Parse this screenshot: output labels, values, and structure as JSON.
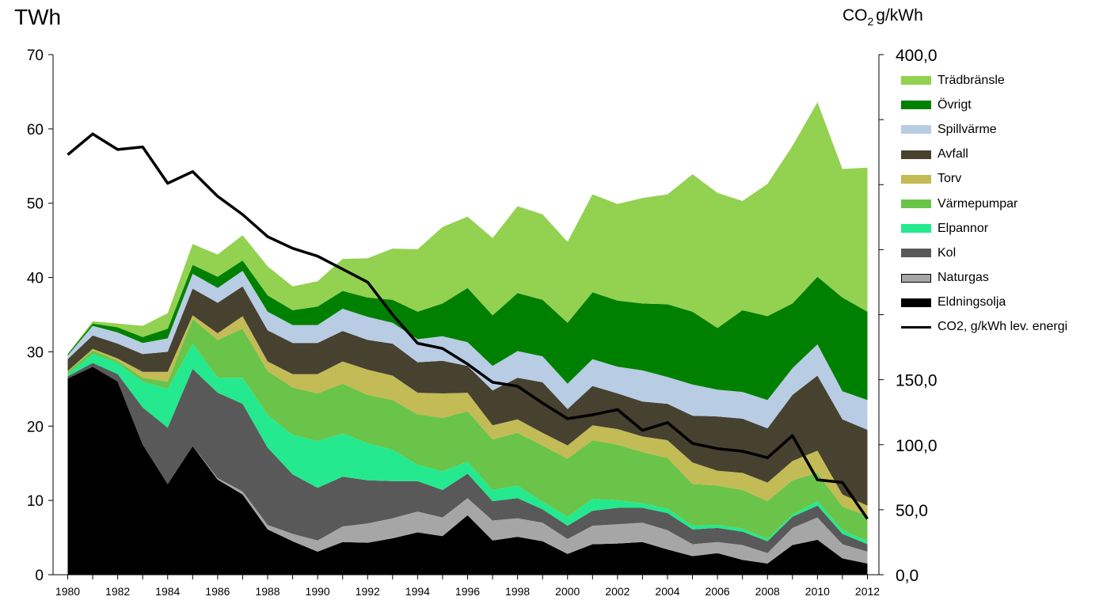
{
  "chart_data": {
    "type": "area",
    "stacked": true,
    "left_unit": "TWh",
    "right_unit_main": "CO",
    "right_unit_sub": "2",
    "right_unit_rest": "g/kWh",
    "x": [
      1980,
      1981,
      1982,
      1983,
      1984,
      1985,
      1986,
      1987,
      1988,
      1989,
      1990,
      1991,
      1992,
      1993,
      1994,
      1995,
      1996,
      1997,
      1998,
      1999,
      2000,
      2001,
      2002,
      2003,
      2004,
      2005,
      2006,
      2007,
      2008,
      2009,
      2010,
      2011,
      2012
    ],
    "x_ticks": [
      "1980",
      "1982",
      "1984",
      "1986",
      "1988",
      "1990",
      "1992",
      "1994",
      "1996",
      "1998",
      "2000",
      "2002",
      "2004",
      "2006",
      "2008",
      "2010",
      "2012"
    ],
    "y_left_ticks": [
      "0",
      "10",
      "20",
      "30",
      "40",
      "50",
      "60",
      "70"
    ],
    "y_left_lim": [
      0,
      70
    ],
    "y_right_ticks": [
      "0,0",
      "50,0",
      "100,0",
      "150,0",
      "200,0",
      "250,0",
      "300,0",
      "350,0",
      "400,0"
    ],
    "y_right_labeled": [
      "0,0",
      "50,0",
      "100,0",
      "150,0",
      "",
      "",
      "",
      "",
      "400,0"
    ],
    "y_right_lim": [
      0,
      400
    ],
    "series": [
      {
        "name": "Eldningsolja",
        "color": "#000000",
        "values": [
          26.4,
          28.0,
          26.0,
          17.5,
          12.2,
          17.3,
          12.8,
          10.8,
          6.1,
          4.5,
          3.1,
          4.4,
          4.3,
          4.9,
          5.7,
          5.2,
          8.0,
          4.6,
          5.1,
          4.5,
          2.8,
          4.1,
          4.2,
          4.4,
          3.4,
          2.5,
          2.9,
          2.0,
          1.5,
          4.0,
          4.7,
          2.2,
          1.5
        ]
      },
      {
        "name": "Naturgas",
        "color": "#a6a6a6",
        "values": [
          0,
          0,
          0,
          0,
          0,
          0,
          0.2,
          0.4,
          0.6,
          1.0,
          1.5,
          2.1,
          2.6,
          2.7,
          2.8,
          2.5,
          2.3,
          2.7,
          2.5,
          2.5,
          2.0,
          2.5,
          2.6,
          2.6,
          2.6,
          1.6,
          1.5,
          2.0,
          1.4,
          2.3,
          3.0,
          1.9,
          1.6
        ]
      },
      {
        "name": "Kol",
        "color": "#595959",
        "values": [
          0.3,
          0.5,
          1.0,
          5.0,
          7.6,
          10.4,
          11.5,
          11.8,
          10.4,
          8.0,
          7.1,
          6.7,
          5.8,
          5.0,
          4.1,
          3.7,
          3.3,
          2.6,
          2.7,
          1.8,
          1.8,
          2.0,
          2.2,
          2.0,
          2.3,
          2.0,
          1.9,
          1.8,
          1.6,
          1.5,
          1.6,
          1.4,
          1.0
        ]
      },
      {
        "name": "Elpannor",
        "color": "#24e98e",
        "values": [
          0.3,
          1.2,
          1.5,
          3.5,
          5.2,
          3.4,
          2.0,
          3.5,
          4.4,
          5.3,
          6.3,
          5.8,
          5.0,
          4.2,
          2.2,
          2.5,
          1.6,
          1.5,
          1.7,
          1.0,
          1.2,
          1.6,
          1.0,
          0.6,
          0.6,
          0.5,
          0.4,
          0.4,
          0.3,
          0.3,
          0.6,
          0.5,
          0.4
        ]
      },
      {
        "name": "Värmepumpar",
        "color": "#69c449",
        "values": [
          0.3,
          0.5,
          0.3,
          0.5,
          1.0,
          3.3,
          5.1,
          6.6,
          5.9,
          6.4,
          6.4,
          6.7,
          6.5,
          6.7,
          6.8,
          7.2,
          6.8,
          6.8,
          7.1,
          7.6,
          7.8,
          7.9,
          7.5,
          6.9,
          6.8,
          5.6,
          5.3,
          5.2,
          5.1,
          4.6,
          3.8,
          3.2,
          3.4
        ]
      },
      {
        "name": "Torv",
        "color": "#c3bb55",
        "values": [
          0.1,
          0.2,
          0.3,
          0.8,
          1.3,
          0.5,
          0.9,
          1.7,
          1.3,
          1.8,
          2.6,
          3.0,
          3.4,
          3.3,
          2.9,
          3.3,
          2.5,
          1.9,
          1.8,
          1.7,
          1.8,
          2.0,
          2.1,
          2.1,
          2.4,
          2.9,
          2.0,
          2.3,
          2.5,
          2.6,
          3.0,
          1.6,
          1.4
        ]
      },
      {
        "name": "Avfall",
        "color": "#474130",
        "values": [
          1.6,
          1.8,
          2.0,
          2.4,
          2.7,
          3.6,
          4.1,
          4.0,
          4.2,
          4.2,
          4.2,
          4.1,
          4.0,
          4.3,
          4.1,
          4.4,
          3.6,
          4.7,
          5.6,
          6.8,
          4.9,
          5.3,
          4.8,
          4.7,
          4.9,
          6.3,
          7.3,
          7.3,
          7.3,
          8.9,
          10.1,
          10.1,
          10.2
        ]
      },
      {
        "name": "Spillvärme",
        "color": "#b8cce4",
        "values": [
          0.5,
          1.3,
          1.5,
          1.5,
          1.8,
          2.0,
          2.0,
          2.1,
          2.5,
          2.4,
          2.4,
          3.0,
          3.1,
          2.8,
          3.1,
          3.3,
          3.2,
          3.3,
          3.6,
          3.5,
          3.4,
          3.6,
          3.6,
          4.2,
          3.6,
          4.2,
          3.6,
          3.6,
          3.8,
          3.6,
          4.2,
          3.8,
          4.0
        ]
      },
      {
        "name": "Övrigt",
        "color": "#008000",
        "values": [
          0.2,
          0.3,
          0.7,
          0.8,
          1.3,
          1.2,
          1.5,
          1.4,
          2.2,
          2.0,
          2.5,
          2.4,
          2.6,
          3.1,
          3.7,
          4.4,
          7.3,
          6.8,
          7.8,
          7.6,
          8.2,
          9.0,
          8.9,
          9.0,
          9.8,
          9.8,
          8.3,
          11.0,
          11.3,
          8.7,
          9.1,
          12.6,
          11.9
        ]
      },
      {
        "name": "Trädbränsle",
        "color": "#93d150",
        "values": [
          0,
          0.3,
          0.5,
          1.5,
          2.1,
          2.8,
          3.0,
          3.4,
          3.9,
          3.2,
          3.4,
          4.3,
          5.3,
          6.9,
          8.4,
          10.3,
          9.6,
          10.4,
          11.7,
          11.5,
          10.9,
          13.2,
          13.0,
          14.2,
          14.8,
          18.5,
          18.2,
          14.7,
          17.8,
          21.2,
          23.5,
          17.3,
          19.4
        ]
      }
    ],
    "line": {
      "name": "CO2, g/kWh lev. energi",
      "axis": "right",
      "color": "#000000",
      "values": [
        323,
        339,
        327,
        329,
        301,
        310,
        291,
        277,
        260,
        251,
        245,
        235,
        225,
        200,
        178,
        174,
        162,
        148,
        145,
        132,
        120,
        123,
        127,
        111,
        117,
        101,
        97,
        95,
        90,
        107,
        73,
        71,
        43
      ]
    },
    "legend_order": [
      "Trädbränsle",
      "Övrigt",
      "Spillvärme",
      "Avfall",
      "Torv",
      "Värmepumpar",
      "Elpannor",
      "Kol",
      "Naturgas",
      "Eldningsolja",
      "CO2, g/kWh lev. energi"
    ],
    "legend_position": "right",
    "grid": false
  }
}
